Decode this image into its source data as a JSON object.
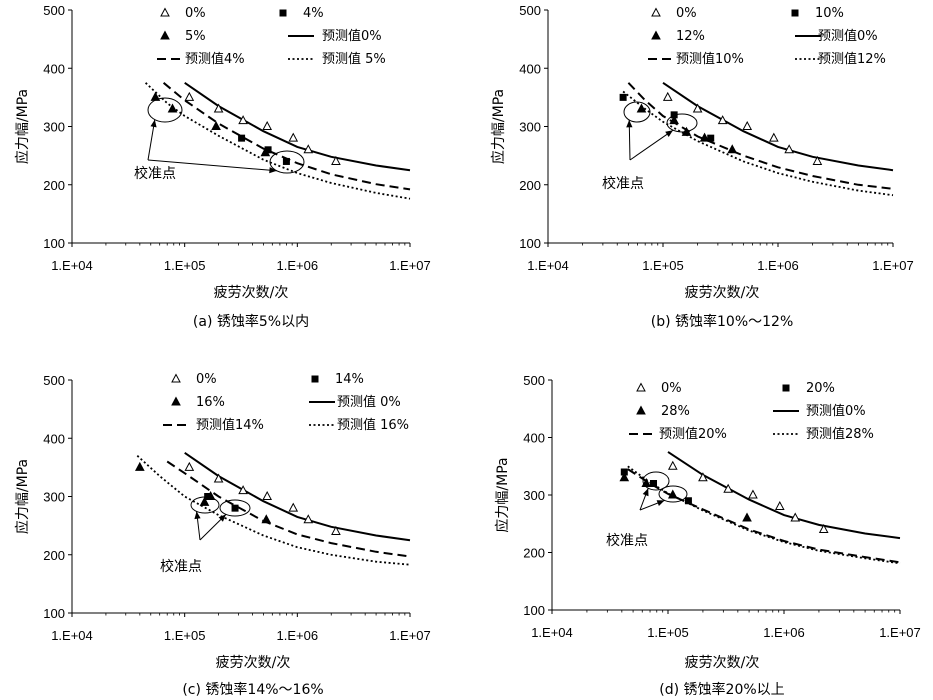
{
  "chart_data": [
    {
      "type": "scatter",
      "caption": "(a) 锈蚀率5%以内",
      "xlabel": "疲劳次数/次",
      "ylabel": "应力幅/MPa",
      "xscale": "log",
      "xlim": [
        10000,
        10000000
      ],
      "ylim": [
        100,
        500
      ],
      "x_ticks": [
        "1.E+04",
        "1.E+05",
        "1.E+06",
        "1.E+07"
      ],
      "y_ticks": [
        "100",
        "200",
        "300",
        "400",
        "500"
      ],
      "annotation": "校准点",
      "series": [
        {
          "name": "0%",
          "marker": "triangle-open",
          "points": [
            [
              110000,
              350
            ],
            [
              200000,
              330
            ],
            [
              330000,
              310
            ],
            [
              540000,
              300
            ],
            [
              920000,
              280
            ],
            [
              1250000,
              260
            ],
            [
              2200000,
              240
            ]
          ]
        },
        {
          "name": "4%",
          "marker": "square",
          "points": [
            [
              320000,
              280
            ],
            [
              550000,
              260
            ],
            [
              800000,
              240
            ]
          ]
        },
        {
          "name": "5%",
          "marker": "triangle",
          "points": [
            [
              55000,
              350
            ],
            [
              78000,
              330
            ],
            [
              190000,
              300
            ],
            [
              520000,
              255
            ]
          ]
        },
        {
          "name": "预测值0%",
          "style": "solid",
          "x": [
            100000,
            200000,
            500000,
            1000000,
            2000000,
            5000000,
            10000000
          ],
          "y": [
            375,
            335,
            292,
            265,
            248,
            233,
            225
          ]
        },
        {
          "name": "预测值4%",
          "style": "dashed",
          "x": [
            65000,
            100000,
            200000,
            500000,
            1000000,
            2000000,
            5000000,
            10000000
          ],
          "y": [
            375,
            345,
            305,
            262,
            237,
            218,
            201,
            192
          ]
        },
        {
          "name": "预测值 5%",
          "style": "dotted",
          "x": [
            45000,
            70000,
            100000,
            200000,
            500000,
            1000000,
            2000000,
            5000000,
            10000000
          ],
          "y": [
            375,
            340,
            318,
            284,
            243,
            220,
            203,
            186,
            176
          ]
        }
      ],
      "calibration_points": [
        [
          80000,
          330
        ],
        [
          850000,
          240
        ]
      ]
    },
    {
      "type": "scatter",
      "caption": "(b) 锈蚀率10%～12%",
      "xlabel": "疲劳次数/次",
      "ylabel": "应力幅/MPa",
      "xscale": "log",
      "xlim": [
        10000,
        10000000
      ],
      "ylim": [
        100,
        500
      ],
      "x_ticks": [
        "1.E+04",
        "1.E+05",
        "1.E+06",
        "1.E+07"
      ],
      "y_ticks": [
        "100",
        "200",
        "300",
        "400",
        "500"
      ],
      "annotation": "校准点",
      "series": [
        {
          "name": "0%",
          "marker": "triangle-open",
          "points": [
            [
              110000,
              350
            ],
            [
              200000,
              330
            ],
            [
              330000,
              310
            ],
            [
              540000,
              300
            ],
            [
              920000,
              280
            ],
            [
              1250000,
              260
            ],
            [
              2200000,
              240
            ]
          ]
        },
        {
          "name": "10%",
          "marker": "square",
          "points": [
            [
              45000,
              350
            ],
            [
              125000,
              320
            ],
            [
              260000,
              280
            ]
          ]
        },
        {
          "name": "12%",
          "marker": "triangle",
          "points": [
            [
              65000,
              330
            ],
            [
              125000,
              310
            ],
            [
              160000,
              290
            ],
            [
              230000,
              280
            ],
            [
              400000,
              260
            ]
          ]
        },
        {
          "name": "预测值0%",
          "style": "solid",
          "x": [
            100000,
            200000,
            500000,
            1000000,
            2000000,
            5000000,
            10000000
          ],
          "y": [
            375,
            335,
            292,
            265,
            248,
            233,
            225
          ]
        },
        {
          "name": "预测值10%",
          "style": "dashed",
          "x": [
            50000,
            70000,
            100000,
            200000,
            500000,
            1000000,
            2000000,
            5000000,
            10000000
          ],
          "y": [
            375,
            345,
            318,
            283,
            250,
            230,
            215,
            200,
            193
          ]
        },
        {
          "name": "预测值12%",
          "style": "dotted",
          "x": [
            45000,
            70000,
            100000,
            200000,
            500000,
            1000000,
            2000000,
            5000000,
            10000000
          ],
          "y": [
            360,
            330,
            308,
            275,
            240,
            220,
            205,
            190,
            182
          ]
        }
      ],
      "calibration_points": [
        [
          70000,
          330
        ],
        [
          130000,
          308
        ]
      ]
    },
    {
      "type": "scatter",
      "caption": "(c) 锈蚀率14%～16%",
      "xlabel": "疲劳次数/次",
      "ylabel": "应力幅/MPa",
      "xscale": "log",
      "xlim": [
        10000,
        10000000
      ],
      "ylim": [
        100,
        500
      ],
      "x_ticks": [
        "1.E+04",
        "1.E+05",
        "1.E+06",
        "1.E+07"
      ],
      "y_ticks": [
        "100",
        "200",
        "300",
        "400",
        "500"
      ],
      "annotation": "校准点",
      "series": [
        {
          "name": "0%",
          "marker": "triangle-open",
          "points": [
            [
              110000,
              350
            ],
            [
              200000,
              330
            ],
            [
              330000,
              310
            ],
            [
              540000,
              300
            ],
            [
              920000,
              280
            ],
            [
              1250000,
              260
            ],
            [
              2200000,
              240
            ]
          ]
        },
        {
          "name": "14%",
          "marker": "square",
          "points": [
            [
              160000,
              300
            ],
            [
              280000,
              280
            ]
          ]
        },
        {
          "name": "16%",
          "marker": "triangle",
          "points": [
            [
              40000,
              350
            ],
            [
              150000,
              290
            ],
            [
              170000,
              300
            ],
            [
              530000,
              260
            ]
          ]
        },
        {
          "name": "预测值 0%",
          "style": "solid",
          "x": [
            100000,
            200000,
            500000,
            1000000,
            2000000,
            5000000,
            10000000
          ],
          "y": [
            375,
            335,
            292,
            265,
            248,
            233,
            225
          ]
        },
        {
          "name": "预测值14%",
          "style": "dashed",
          "x": [
            70000,
            100000,
            200000,
            500000,
            1000000,
            2000000,
            5000000,
            10000000
          ],
          "y": [
            360,
            340,
            300,
            258,
            235,
            220,
            205,
            197
          ]
        },
        {
          "name": "预测值 16%",
          "style": "dotted",
          "x": [
            38000,
            60000,
            100000,
            200000,
            500000,
            1000000,
            2000000,
            5000000,
            10000000
          ],
          "y": [
            370,
            335,
            300,
            268,
            233,
            213,
            200,
            188,
            183
          ]
        }
      ],
      "calibration_points": [
        [
          160000,
          288
        ],
        [
          260000,
          278
        ]
      ]
    },
    {
      "type": "scatter",
      "caption": "(d) 锈蚀率20%以上",
      "xlabel": "疲劳次数/次",
      "ylabel": "应力幅/MPa",
      "xscale": "log",
      "xlim": [
        10000,
        10000000
      ],
      "ylim": [
        100,
        500
      ],
      "x_ticks": [
        "1.E+04",
        "1.E+05",
        "1.E+06",
        "1.E+07"
      ],
      "y_ticks": [
        "100",
        "200",
        "300",
        "400",
        "500"
      ],
      "annotation": "校准点",
      "series": [
        {
          "name": "0%",
          "marker": "triangle-open",
          "points": [
            [
              110000,
              350
            ],
            [
              200000,
              330
            ],
            [
              330000,
              310
            ],
            [
              540000,
              300
            ],
            [
              920000,
              280
            ],
            [
              1250000,
              260
            ],
            [
              2200000,
              240
            ]
          ]
        },
        {
          "name": "20%",
          "marker": "square",
          "points": [
            [
              42000,
              340
            ],
            [
              75000,
              320
            ],
            [
              150000,
              290
            ]
          ]
        },
        {
          "name": "28%",
          "marker": "triangle",
          "points": [
            [
              42000,
              330
            ],
            [
              65000,
              320
            ],
            [
              110000,
              300
            ],
            [
              480000,
              260
            ]
          ]
        },
        {
          "name": "预测值0%",
          "style": "solid",
          "x": [
            100000,
            200000,
            500000,
            1000000,
            2000000,
            5000000,
            10000000
          ],
          "y": [
            375,
            335,
            292,
            265,
            248,
            233,
            225
          ]
        },
        {
          "name": "预测值20%",
          "style": "dashed",
          "x": [
            45000,
            70000,
            100000,
            200000,
            500000,
            1000000,
            2000000,
            5000000,
            10000000
          ],
          "y": [
            345,
            320,
            302,
            275,
            240,
            220,
            205,
            192,
            183
          ]
        },
        {
          "name": "预测值28%",
          "style": "dotted",
          "x": [
            45000,
            70000,
            100000,
            200000,
            500000,
            1000000,
            2000000,
            5000000,
            10000000
          ],
          "y": [
            350,
            322,
            303,
            273,
            238,
            218,
            203,
            190,
            181
          ]
        }
      ],
      "calibration_points": [
        [
          70000,
          320
        ],
        [
          115000,
          300
        ]
      ]
    }
  ]
}
